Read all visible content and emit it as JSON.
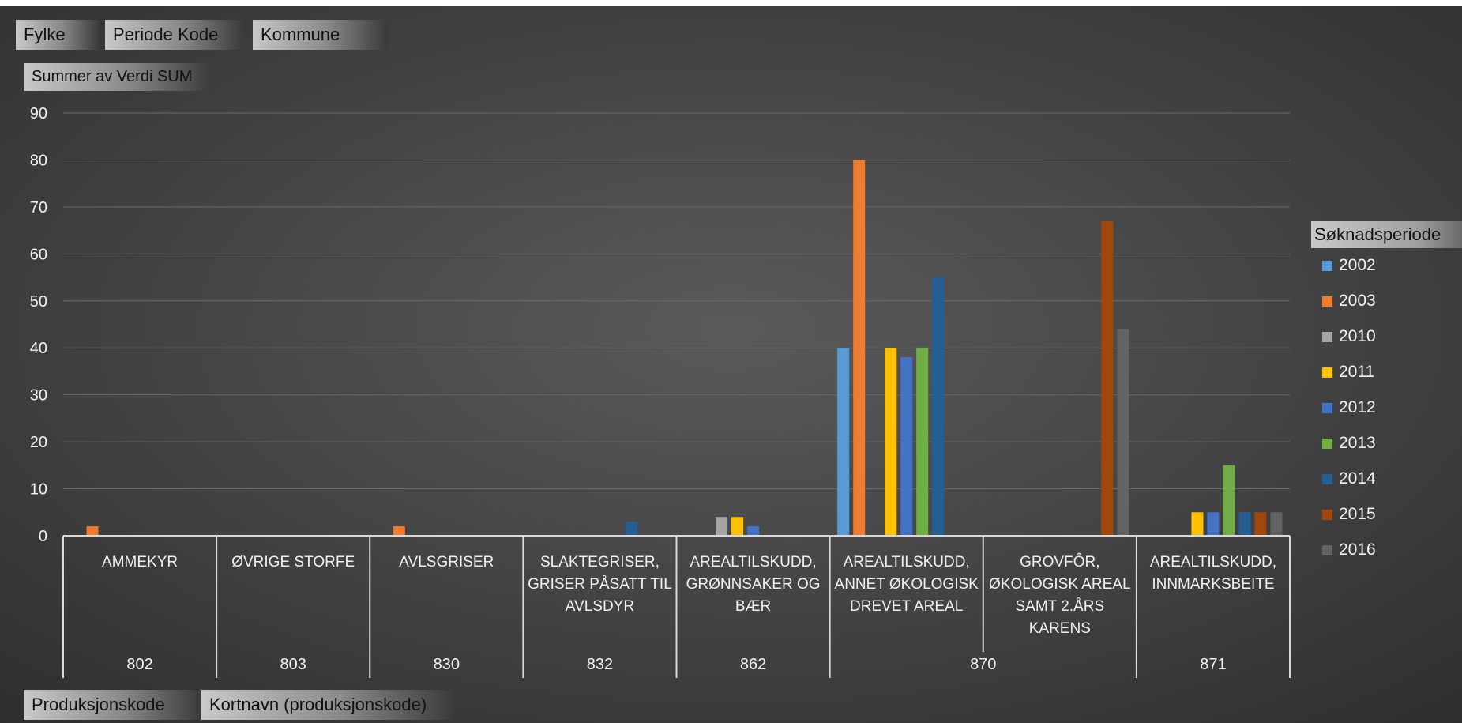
{
  "filters": {
    "fylke": "Fylke",
    "periode_kode": "Periode Kode",
    "kommune": "Kommune",
    "value_field": "Summer av Verdi SUM"
  },
  "axis_fields": {
    "produksjonskode": "Produksjonskode",
    "kortnavn": "Kortnavn (produksjonskode)"
  },
  "legend": {
    "title": "Søknadsperiode"
  },
  "colors": {
    "background_center": "#5a5a5a",
    "background_edge": "#2e2e2e",
    "gridline": "#6a6a6a",
    "axis": "#d9d9d9",
    "text": "#f0f0f0"
  },
  "chart_data": {
    "type": "bar",
    "ylim": [
      0,
      90
    ],
    "yticks": [
      0,
      10,
      20,
      30,
      40,
      50,
      60,
      70,
      80,
      90
    ],
    "grid": true,
    "legend_position": "right",
    "groups": [
      {
        "code": "802",
        "categories": [
          "AMMEKYR"
        ]
      },
      {
        "code": "803",
        "categories": [
          "ØVRIGE STORFE"
        ]
      },
      {
        "code": "830",
        "categories": [
          "AVLSGRISER"
        ]
      },
      {
        "code": "832",
        "categories": [
          "SLAKTEGRISER, GRISER PÅSATT TIL AVLSDYR"
        ]
      },
      {
        "code": "862",
        "categories": [
          "AREALTILSKUDD, GRØNNSAKER OG BÆR"
        ]
      },
      {
        "code": "870",
        "categories": [
          "AREALTILSKUDD, ANNET ØKOLOGISK DREVET AREAL",
          "GROVFÔR, ØKOLOGISK AREAL SAMT 2.ÅRS KARENS"
        ]
      },
      {
        "code": "871",
        "categories": [
          "AREALTILSKUDD, INNMARKSBEITE"
        ]
      }
    ],
    "categories": [
      "AMMEKYR",
      "ØVRIGE STORFE",
      "AVLSGRISER",
      "SLAKTEGRISER, GRISER PÅSATT TIL AVLSDYR",
      "AREALTILSKUDD, GRØNNSAKER OG BÆR",
      "AREALTILSKUDD, ANNET ØKOLOGISK DREVET AREAL",
      "GROVFÔR, ØKOLOGISK AREAL SAMT 2.ÅRS KARENS",
      "AREALTILSKUDD, INNMARKSBEITE"
    ],
    "series": [
      {
        "name": "2002",
        "color": "#5b9bd5",
        "values": [
          null,
          null,
          null,
          null,
          null,
          40,
          null,
          null
        ]
      },
      {
        "name": "2003",
        "color": "#ed7d31",
        "values": [
          2,
          null,
          2,
          null,
          null,
          80,
          null,
          null
        ]
      },
      {
        "name": "2010",
        "color": "#a5a5a5",
        "values": [
          null,
          null,
          null,
          null,
          4,
          null,
          null,
          null
        ]
      },
      {
        "name": "2011",
        "color": "#ffc000",
        "values": [
          null,
          null,
          null,
          null,
          4,
          40,
          null,
          5
        ]
      },
      {
        "name": "2012",
        "color": "#4472c4",
        "values": [
          null,
          null,
          null,
          null,
          2,
          38,
          null,
          5
        ]
      },
      {
        "name": "2013",
        "color": "#70ad47",
        "values": [
          null,
          null,
          null,
          null,
          null,
          40,
          null,
          15
        ]
      },
      {
        "name": "2014",
        "color": "#255e91",
        "values": [
          null,
          null,
          null,
          3,
          null,
          55,
          null,
          5
        ]
      },
      {
        "name": "2015",
        "color": "#9e480e",
        "values": [
          null,
          null,
          null,
          null,
          null,
          null,
          67,
          5
        ]
      },
      {
        "name": "2016",
        "color": "#636363",
        "values": [
          null,
          null,
          null,
          null,
          null,
          null,
          44,
          5
        ]
      }
    ]
  }
}
